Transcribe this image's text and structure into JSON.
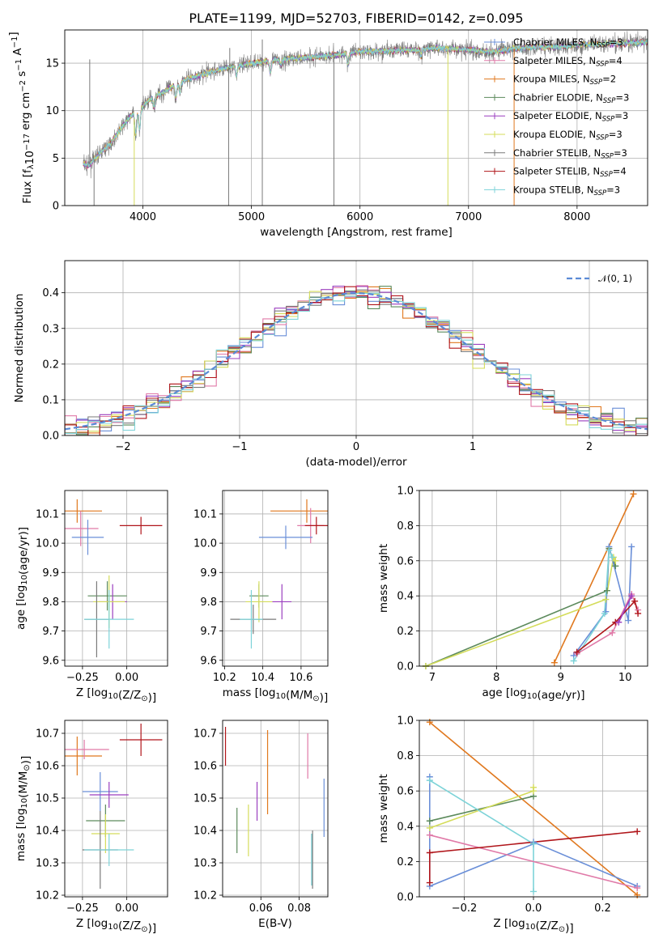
{
  "title": "PLATE=1199, MJD=52703, FIBERID=0142, z=0.095",
  "colors": {
    "Chabrier MILES": "#6a8fd8",
    "Salpeter MILES": "#e07aa8",
    "Kroupa MILES": "#e0781e",
    "Chabrier ELODIE": "#5c8a5c",
    "Salpeter ELODIE": "#9b3fbf",
    "Kroupa ELODIE": "#d4dc5a",
    "Chabrier STELIB": "#7a7a7a",
    "Salpeter STELIB": "#b0151a",
    "Kroupa STELIB": "#7dd3d8",
    "normal": "#5b8ad6"
  },
  "chart_data": [
    {
      "id": "spectrum",
      "type": "line",
      "title": "PLATE=1199, MJD=52703, FIBERID=0142, z=0.095",
      "xlabel": "wavelength [Angstrom, rest frame]",
      "ylabel": "Flux [f_λ 10^-17 erg cm^-2 s^-1 A^-1]",
      "ylabel_parts": [
        "Flux [f",
        "λ",
        "10",
        "−17",
        " erg cm",
        "−2",
        " s",
        "−1",
        " A",
        "−1",
        "]"
      ],
      "xlim": [
        3280,
        8650
      ],
      "ylim": [
        0,
        18.5
      ],
      "xticks": [
        4000,
        5000,
        6000,
        7000,
        8000
      ],
      "yticks": [
        0,
        5,
        10,
        15
      ],
      "legend_position": "upper-right",
      "legend": [
        {
          "model": "Chabrier MILES",
          "nssp": "3"
        },
        {
          "model": "Salpeter MILES",
          "nssp": "4"
        },
        {
          "model": "Kroupa MILES",
          "nssp": "2"
        },
        {
          "model": "Chabrier ELODIE",
          "nssp": "3"
        },
        {
          "model": "Salpeter ELODIE",
          "nssp": "3"
        },
        {
          "model": "Kroupa ELODIE",
          "nssp": "3"
        },
        {
          "model": "Chabrier STELIB",
          "nssp": "3"
        },
        {
          "model": "Salpeter STELIB",
          "nssp": "4"
        },
        {
          "model": "Kroupa STELIB",
          "nssp": "3"
        }
      ],
      "nssp_label": "N",
      "nssp_sub": "SSP",
      "continuum": [
        [
          3450,
          4.4
        ],
        [
          3500,
          4.2
        ],
        [
          3600,
          5.5
        ],
        [
          3700,
          6.5
        ],
        [
          3800,
          8.2
        ],
        [
          3900,
          9.6
        ],
        [
          4000,
          10.5
        ],
        [
          4100,
          11.5
        ],
        [
          4200,
          12.0
        ],
        [
          4300,
          12.8
        ],
        [
          4400,
          13.3
        ],
        [
          4600,
          14.0
        ],
        [
          4800,
          14.6
        ],
        [
          5000,
          15.0
        ],
        [
          5200,
          15.3
        ],
        [
          5500,
          15.6
        ],
        [
          5800,
          15.9
        ],
        [
          6000,
          16.2
        ],
        [
          6200,
          16.3
        ],
        [
          6500,
          16.4
        ],
        [
          6700,
          16.6
        ],
        [
          7000,
          16.4
        ],
        [
          7200,
          16.2
        ],
        [
          7400,
          16.5
        ],
        [
          7600,
          16.7
        ],
        [
          7800,
          16.7
        ],
        [
          8000,
          16.9
        ],
        [
          8200,
          17.0
        ],
        [
          8400,
          17.1
        ],
        [
          8600,
          17.2
        ]
      ],
      "spikes_down": [
        [
          3550,
          0
        ],
        [
          3920,
          0
        ],
        [
          4790,
          0
        ],
        [
          5100,
          0
        ],
        [
          5760,
          0
        ],
        [
          6810,
          0
        ],
        [
          7420,
          0
        ]
      ],
      "spikes_up": [
        [
          3510,
          15.4
        ],
        [
          4800,
          16.6
        ],
        [
          5100,
          17.5
        ]
      ]
    },
    {
      "id": "residuals",
      "type": "histogram",
      "xlabel": "(data-model)/error",
      "ylabel": "Normed distribution",
      "xlim": [
        -2.5,
        2.5
      ],
      "ylim": [
        0,
        0.49
      ],
      "xticks": [
        -2,
        -1,
        0,
        1,
        2
      ],
      "xtick_labels": [
        "−2",
        "−1",
        "0",
        "1",
        "2"
      ],
      "yticks": [
        0.0,
        0.1,
        0.2,
        0.3,
        0.4
      ],
      "ytick_labels": [
        "0.0",
        "0.1",
        "0.2",
        "0.3",
        "0.4"
      ],
      "bin_width": 0.1,
      "normal_label": "𝒩(0, 1)",
      "legend_position": "upper-right"
    },
    {
      "id": "age_vs_Z",
      "type": "errorbar",
      "xlabel": "Z [log₁₀(Z/Z⊙)]",
      "ylabel": "age  [log₁₀(age/yr)]",
      "xlim": [
        -0.35,
        0.23
      ],
      "ylim": [
        9.58,
        10.18
      ],
      "xticks": [
        -0.25,
        0.0
      ],
      "xtick_labels": [
        "−0.25",
        "0.00"
      ],
      "yticks": [
        9.6,
        9.7,
        9.8,
        9.9,
        10.0,
        10.1
      ],
      "points": [
        {
          "model": "Kroupa MILES",
          "x": -0.28,
          "xerr": 0.14,
          "y": 10.11,
          "yerr": 0.04
        },
        {
          "model": "Salpeter MILES",
          "x": -0.26,
          "xerr": 0.1,
          "y": 10.05,
          "yerr": 0.06
        },
        {
          "model": "Chabrier MILES",
          "x": -0.22,
          "xerr": 0.09,
          "y": 10.02,
          "yerr": 0.06
        },
        {
          "model": "Salpeter STELIB",
          "x": 0.08,
          "xerr": 0.12,
          "y": 10.06,
          "yerr": 0.03
        },
        {
          "model": "Chabrier ELODIE",
          "x": -0.11,
          "xerr": 0.11,
          "y": 9.82,
          "yerr": 0.05
        },
        {
          "model": "Salpeter ELODIE",
          "x": -0.08,
          "xerr": 0.08,
          "y": 9.8,
          "yerr": 0.06
        },
        {
          "model": "Kroupa ELODIE",
          "x": -0.1,
          "xerr": 0.09,
          "y": 9.8,
          "yerr": 0.09
        },
        {
          "model": "Chabrier STELIB",
          "x": -0.17,
          "xerr": 0.07,
          "y": 9.74,
          "yerr": 0.13
        },
        {
          "model": "Kroupa STELIB",
          "x": -0.1,
          "xerr": 0.14,
          "y": 9.74,
          "yerr": 0.1
        }
      ]
    },
    {
      "id": "age_vs_mass",
      "type": "errorbar",
      "xlabel": "mass [log₁₀(M/M⊙)]",
      "ylabel": "",
      "xlim": [
        10.19,
        10.74
      ],
      "ylim": [
        9.58,
        10.18
      ],
      "xticks": [
        10.2,
        10.4,
        10.6
      ],
      "xtick_labels": [
        "10.2",
        "10.4",
        "10.6"
      ],
      "yticks": [
        9.6,
        9.7,
        9.8,
        9.9,
        10.0,
        10.1
      ],
      "points": [
        {
          "model": "Kroupa MILES",
          "x": 10.63,
          "xerr": 0.19,
          "y": 10.11,
          "yerr": 0.04
        },
        {
          "model": "Salpeter MILES",
          "x": 10.65,
          "xerr": 0.07,
          "y": 10.06,
          "yerr": 0.06
        },
        {
          "model": "Chabrier MILES",
          "x": 10.52,
          "xerr": 0.14,
          "y": 10.02,
          "yerr": 0.04
        },
        {
          "model": "Salpeter STELIB",
          "x": 10.68,
          "xerr": 0.06,
          "y": 10.06,
          "yerr": 0.03
        },
        {
          "model": "Chabrier ELODIE",
          "x": 10.38,
          "xerr": 0.05,
          "y": 9.82,
          "yerr": 0.04
        },
        {
          "model": "Salpeter ELODIE",
          "x": 10.5,
          "xerr": 0.05,
          "y": 9.8,
          "yerr": 0.06
        },
        {
          "model": "Kroupa ELODIE",
          "x": 10.38,
          "xerr": 0.07,
          "y": 9.8,
          "yerr": 0.07
        },
        {
          "model": "Chabrier STELIB",
          "x": 10.35,
          "xerr": 0.12,
          "y": 9.74,
          "yerr": 0.05
        },
        {
          "model": "Kroupa STELIB",
          "x": 10.34,
          "xerr": 0.06,
          "y": 9.74,
          "yerr": 0.1
        }
      ]
    },
    {
      "id": "weight_vs_age",
      "type": "line",
      "xlabel": "age  [log₁₀(age/yr)]",
      "ylabel": "mass weight",
      "xlim": [
        6.8,
        10.35
      ],
      "ylim": [
        0,
        1.0
      ],
      "xticks": [
        7,
        8,
        9,
        10
      ],
      "yticks": [
        0.0,
        0.2,
        0.4,
        0.6,
        0.8,
        1.0
      ],
      "series": [
        {
          "model": "Kroupa MILES",
          "x": [
            8.9,
            10.13
          ],
          "y": [
            0.02,
            0.98
          ]
        },
        {
          "model": "Chabrier ELODIE",
          "x": [
            6.9,
            9.72,
            9.75,
            9.85
          ],
          "y": [
            0.0,
            0.43,
            0.67,
            0.57
          ]
        },
        {
          "model": "Kroupa ELODIE",
          "x": [
            6.9,
            9.7,
            9.82,
            9.85
          ],
          "y": [
            0.0,
            0.38,
            0.62,
            0.6
          ]
        },
        {
          "model": "Chabrier MILES",
          "x": [
            9.2,
            9.7,
            9.75,
            10.05,
            10.1
          ],
          "y": [
            0.06,
            0.31,
            0.68,
            0.26,
            0.68
          ]
        },
        {
          "model": "Kroupa STELIB",
          "x": [
            9.2,
            9.68,
            9.75,
            9.8
          ],
          "y": [
            0.03,
            0.3,
            0.66,
            0.62
          ]
        },
        {
          "model": "Salpeter MILES",
          "x": [
            9.25,
            9.8,
            10.1,
            10.2
          ],
          "y": [
            0.07,
            0.19,
            0.41,
            0.32
          ]
        },
        {
          "model": "Salpeter STELIB",
          "x": [
            9.25,
            9.85,
            10.15,
            10.2
          ],
          "y": [
            0.08,
            0.25,
            0.37,
            0.3
          ]
        },
        {
          "model": "Salpeter ELODIE",
          "x": [
            9.9,
            10.1
          ],
          "y": [
            0.25,
            0.4
          ]
        }
      ]
    },
    {
      "id": "mass_vs_Z",
      "type": "errorbar",
      "xlabel": "Z [log₁₀(Z/Z⊙)]",
      "ylabel": "mass [log₁₀(M/M⊙)]",
      "xlim": [
        -0.35,
        0.23
      ],
      "ylim": [
        10.195,
        10.74
      ],
      "xticks": [
        -0.25,
        0.0
      ],
      "xtick_labels": [
        "−0.25",
        "0.00"
      ],
      "yticks": [
        10.2,
        10.3,
        10.4,
        10.5,
        10.6,
        10.7
      ],
      "points": [
        {
          "model": "Kroupa MILES",
          "x": -0.28,
          "xerr": 0.14,
          "y": 10.63,
          "yerr": 0.06
        },
        {
          "model": "Salpeter MILES",
          "x": -0.24,
          "xerr": 0.14,
          "y": 10.65,
          "yerr": 0.03
        },
        {
          "model": "Chabrier MILES",
          "x": -0.15,
          "xerr": 0.1,
          "y": 10.52,
          "yerr": 0.06
        },
        {
          "model": "Salpeter STELIB",
          "x": 0.08,
          "xerr": 0.12,
          "y": 10.68,
          "yerr": 0.05
        },
        {
          "model": "Chabrier ELODIE",
          "x": -0.12,
          "xerr": 0.11,
          "y": 10.43,
          "yerr": 0.05
        },
        {
          "model": "Salpeter ELODIE",
          "x": -0.1,
          "xerr": 0.11,
          "y": 10.51,
          "yerr": 0.04
        },
        {
          "model": "Kroupa ELODIE",
          "x": -0.12,
          "xerr": 0.08,
          "y": 10.39,
          "yerr": 0.06
        },
        {
          "model": "Chabrier STELIB",
          "x": -0.15,
          "xerr": 0.1,
          "y": 10.34,
          "yerr": 0.12
        },
        {
          "model": "Kroupa STELIB",
          "x": -0.1,
          "xerr": 0.14,
          "y": 10.34,
          "yerr": 0.05
        }
      ]
    },
    {
      "id": "mass_vs_ebv",
      "type": "errorbar",
      "xlabel": "E(B-V)",
      "ylabel": "",
      "xlim": [
        0.04,
        0.095
      ],
      "ylim": [
        10.195,
        10.74
      ],
      "xticks": [
        0.06,
        0.08
      ],
      "xtick_labels": [
        "0.06",
        "0.08"
      ],
      "yticks": [
        10.2,
        10.3,
        10.4,
        10.5,
        10.6,
        10.7
      ],
      "points": [
        {
          "model": "Salpeter STELIB",
          "x": 0.0415,
          "y": 10.66,
          "yerr": 0.06
        },
        {
          "model": "Chabrier ELODIE",
          "x": 0.0475,
          "y": 10.4,
          "yerr": 0.07
        },
        {
          "model": "Kroupa ELODIE",
          "x": 0.0535,
          "y": 10.4,
          "yerr": 0.08
        },
        {
          "model": "Salpeter ELODIE",
          "x": 0.058,
          "y": 10.49,
          "yerr": 0.06
        },
        {
          "model": "Kroupa MILES",
          "x": 0.0635,
          "y": 10.58,
          "yerr": 0.13
        },
        {
          "model": "Salpeter MILES",
          "x": 0.0845,
          "y": 10.63,
          "yerr": 0.07
        },
        {
          "model": "Chabrier STELIB",
          "x": 0.087,
          "y": 10.31,
          "yerr": 0.09
        },
        {
          "model": "Kroupa STELIB",
          "x": 0.0865,
          "y": 10.31,
          "yerr": 0.08
        },
        {
          "model": "Chabrier MILES",
          "x": 0.093,
          "y": 10.47,
          "yerr": 0.09
        }
      ]
    },
    {
      "id": "weight_vs_Z",
      "type": "line",
      "xlabel": "Z [log₁₀(Z/Z⊙)]",
      "ylabel": "mass weight",
      "xlim": [
        -0.33,
        0.33
      ],
      "ylim": [
        0,
        1.0
      ],
      "xticks": [
        -0.2,
        0.0,
        0.2
      ],
      "xtick_labels": [
        "−0.2",
        "0.0",
        "0.2"
      ],
      "yticks": [
        0.0,
        0.2,
        0.4,
        0.6,
        0.8,
        1.0
      ],
      "series": [
        {
          "model": "Kroupa MILES",
          "x": [
            -0.3,
            0.3
          ],
          "y": [
            0.99,
            0.01
          ]
        },
        {
          "model": "Chabrier MILES",
          "x": [
            -0.3,
            -0.3,
            0.0,
            0.0,
            0.3
          ],
          "y": [
            0.68,
            0.06,
            0.3,
            0.31,
            0.06
          ]
        },
        {
          "model": "Chabrier ELODIE",
          "x": [
            -0.3,
            0.0
          ],
          "y": [
            0.43,
            0.57
          ]
        },
        {
          "model": "Kroupa ELODIE",
          "x": [
            -0.3,
            0.0,
            0.0
          ],
          "y": [
            0.39,
            0.6,
            0.62
          ]
        },
        {
          "model": "Kroupa STELIB",
          "x": [
            -0.3,
            0.0,
            0.0
          ],
          "y": [
            0.66,
            0.3,
            0.03
          ]
        },
        {
          "model": "Salpeter MILES",
          "x": [
            -0.3,
            0.3
          ],
          "y": [
            0.35,
            0.05
          ]
        },
        {
          "model": "Salpeter STELIB",
          "x": [
            -0.3,
            -0.3,
            0.3
          ],
          "y": [
            0.08,
            0.25,
            0.37
          ]
        }
      ]
    }
  ]
}
